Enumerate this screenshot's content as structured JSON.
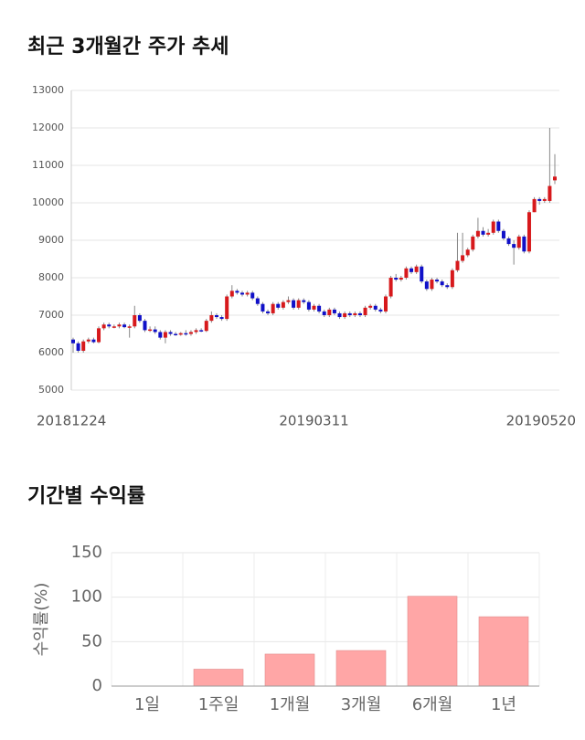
{
  "chart_data": [
    {
      "type": "candlestick",
      "title": "최근 3개월간 주가 추세",
      "categories": [
        "20181224",
        null,
        null,
        null,
        null,
        null,
        null,
        null,
        null,
        null,
        null,
        null,
        null,
        null,
        null,
        null,
        null,
        null,
        null,
        null,
        null,
        null,
        null,
        null,
        null,
        null,
        null,
        null,
        null,
        null,
        null,
        null,
        null,
        null,
        null,
        null,
        null,
        null,
        null,
        null,
        null,
        null,
        null,
        null,
        null,
        null,
        null,
        "20190311",
        null,
        null,
        null,
        null,
        null,
        null,
        null,
        null,
        null,
        null,
        null,
        null,
        null,
        null,
        null,
        null,
        null,
        null,
        null,
        null,
        null,
        null,
        null,
        null,
        null,
        null,
        null,
        null,
        null,
        null,
        null,
        null,
        null,
        null,
        null,
        null,
        null,
        null,
        null,
        null,
        null,
        null,
        null,
        null,
        null,
        null,
        "20190520"
      ],
      "open": [
        6350,
        6250,
        6050,
        6300,
        6350,
        6280,
        6650,
        6750,
        6700,
        6700,
        6750,
        6680,
        6700,
        7000,
        6850,
        6600,
        6620,
        6550,
        6400,
        6550,
        6500,
        6480,
        6520,
        6500,
        6550,
        6600,
        6580,
        6850,
        7000,
        6950,
        6900,
        7500,
        7650,
        7600,
        7550,
        7600,
        7450,
        7300,
        7100,
        7050,
        7300,
        7200,
        7350,
        7400,
        7200,
        7400,
        7350,
        7150,
        7250,
        7100,
        7000,
        7150,
        7050,
        6950,
        7050,
        7000,
        7050,
        7000,
        7200,
        7250,
        7150,
        7100,
        7500,
        8000,
        7950,
        8000,
        8250,
        8150,
        8300,
        7900,
        7700,
        7950,
        7900,
        7800,
        7750,
        8200,
        8450,
        8600,
        8750,
        9100,
        9250,
        9150,
        9200,
        9500,
        9250,
        9050,
        8900,
        8800,
        9100,
        8700,
        9750,
        10100,
        10050,
        10050,
        10600
      ],
      "high": [
        6400,
        6300,
        6350,
        6400,
        6400,
        6700,
        6800,
        6800,
        6750,
        6800,
        6800,
        6750,
        7250,
        7050,
        6900,
        6700,
        6700,
        6600,
        6600,
        6600,
        6550,
        6550,
        6600,
        6600,
        6650,
        6650,
        6900,
        7100,
        7050,
        7000,
        7550,
        7800,
        7700,
        7650,
        7650,
        7650,
        7500,
        7350,
        7150,
        7350,
        7350,
        7400,
        7500,
        7450,
        7450,
        7450,
        7400,
        7300,
        7300,
        7150,
        7200,
        7200,
        7100,
        7100,
        7100,
        7100,
        7100,
        7250,
        7300,
        7300,
        7200,
        7550,
        8050,
        8100,
        8050,
        8300,
        8300,
        8350,
        8350,
        7950,
        8000,
        8000,
        7950,
        7850,
        8250,
        9200,
        9200,
        8800,
        9150,
        9600,
        9350,
        9300,
        9550,
        9550,
        9300,
        9100,
        9000,
        9150,
        9150,
        9800,
        10150,
        10150,
        10150,
        12000,
        11300
      ],
      "low": [
        6000,
        6000,
        6000,
        6250,
        6250,
        6250,
        6600,
        6650,
        6650,
        6650,
        6650,
        6400,
        6650,
        6800,
        6550,
        6550,
        6500,
        6350,
        6250,
        6450,
        6450,
        6450,
        6450,
        6450,
        6500,
        6550,
        6550,
        6800,
        6900,
        6850,
        6850,
        7450,
        7550,
        7500,
        7500,
        7400,
        7250,
        7050,
        7000,
        7000,
        7150,
        7150,
        7300,
        7150,
        7150,
        7300,
        7100,
        7100,
        7050,
        6950,
        6950,
        7000,
        6900,
        6900,
        6950,
        6950,
        6950,
        6950,
        7150,
        7100,
        7050,
        7050,
        7450,
        7900,
        7900,
        7950,
        8100,
        8100,
        7850,
        7650,
        7650,
        7850,
        7750,
        7700,
        7700,
        8150,
        8400,
        8550,
        8700,
        9050,
        9100,
        9100,
        9150,
        9200,
        9000,
        8850,
        8350,
        8750,
        8650,
        8650,
        9750,
        9950,
        10000,
        10000,
        10500
      ],
      "close": [
        6250,
        6050,
        6300,
        6350,
        6280,
        6650,
        6750,
        6700,
        6700,
        6750,
        6680,
        6700,
        7000,
        6850,
        6600,
        6620,
        6550,
        6400,
        6550,
        6500,
        6480,
        6520,
        6500,
        6550,
        6600,
        6580,
        6850,
        7000,
        6950,
        6900,
        7500,
        7650,
        7600,
        7550,
        7600,
        7450,
        7300,
        7100,
        7050,
        7300,
        7200,
        7350,
        7400,
        7200,
        7400,
        7350,
        7150,
        7250,
        7100,
        7000,
        7150,
        7050,
        6950,
        7050,
        7000,
        7050,
        7000,
        7200,
        7250,
        7150,
        7100,
        7500,
        8000,
        7950,
        8000,
        8250,
        8150,
        8300,
        7900,
        7700,
        7950,
        7900,
        7800,
        7750,
        8200,
        8450,
        8600,
        8750,
        9100,
        9250,
        9150,
        9200,
        9500,
        9250,
        9050,
        8900,
        8800,
        9100,
        8700,
        9750,
        10100,
        10050,
        10100,
        10450,
        10700
      ],
      "up_color": "#d7191c",
      "down_color": "#1010c8",
      "ylim": [
        5000,
        13000
      ],
      "yticks": [
        5000,
        6000,
        7000,
        8000,
        9000,
        10000,
        11000,
        12000,
        13000
      ],
      "grid": true
    },
    {
      "type": "bar",
      "title": "기간별 수익률",
      "ylabel": "수익률(%)",
      "categories": [
        "1일",
        "1주일",
        "1개월",
        "3개월",
        "6개월",
        "1년"
      ],
      "values": [
        0,
        19,
        36,
        40,
        101,
        78
      ],
      "color": "#ffa6a6",
      "ylim": [
        0,
        150
      ],
      "yticks": [
        0,
        50,
        100,
        150
      ],
      "grid": true
    }
  ]
}
